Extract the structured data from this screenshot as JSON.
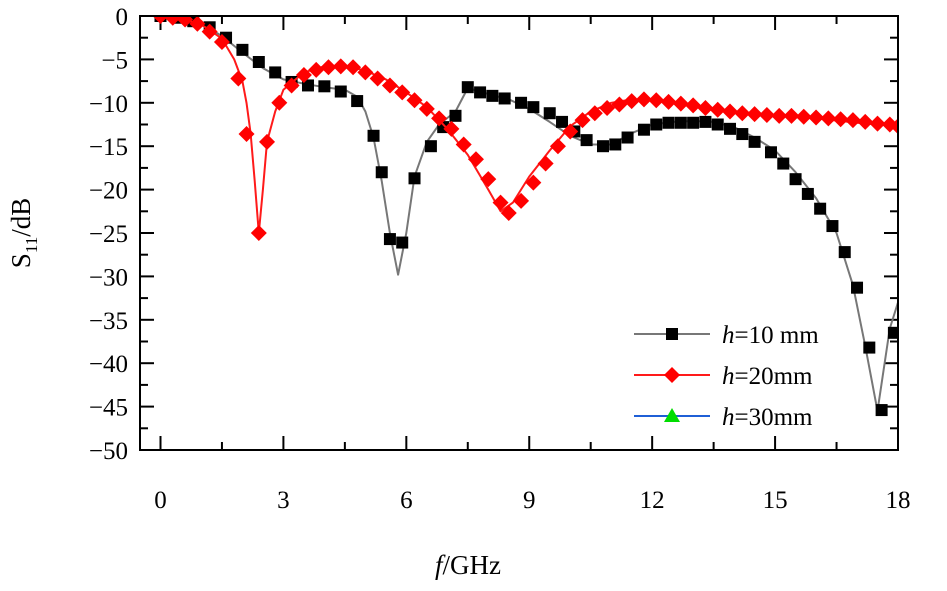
{
  "chart_data": {
    "type": "line",
    "title": "",
    "xlabel": {
      "italic": "f",
      "rest": "/GHz"
    },
    "ylabel": {
      "main": "S",
      "sub": "11",
      "rest": "/dB"
    },
    "xlim": [
      -0.5,
      18
    ],
    "ylim": [
      -50,
      0
    ],
    "xticks": [
      0,
      3,
      6,
      9,
      12,
      15,
      18
    ],
    "yticks": [
      0,
      -5,
      -10,
      -15,
      -20,
      -25,
      -30,
      -35,
      -40,
      -45,
      -50
    ],
    "xtick_labels": [
      "0",
      "3",
      "6",
      "9",
      "12",
      "15",
      "18"
    ],
    "ytick_labels": [
      "0",
      "−5",
      "−10",
      "−15",
      "−20",
      "−25",
      "−30",
      "−35",
      "−40",
      "−45",
      "−50"
    ],
    "grid": false,
    "legend_position": "bottom-right",
    "series": [
      {
        "name": "h=10 mm",
        "label_italic": "h",
        "label_rest": "=10 mm",
        "color": "#777777",
        "marker": "square",
        "marker_color": "#000000",
        "line": [
          [
            0,
            0
          ],
          [
            0.5,
            -0.3
          ],
          [
            1.0,
            -0.9
          ],
          [
            1.5,
            -2.3
          ],
          [
            2.0,
            -4.2
          ],
          [
            2.5,
            -6.0
          ],
          [
            3.0,
            -7.3
          ],
          [
            3.5,
            -7.8
          ],
          [
            4.0,
            -8.2
          ],
          [
            4.5,
            -8.5
          ],
          [
            4.8,
            -9.3
          ],
          [
            5.0,
            -11.0
          ],
          [
            5.2,
            -14.0
          ],
          [
            5.4,
            -19.0
          ],
          [
            5.6,
            -25.0
          ],
          [
            5.8,
            -29.8
          ],
          [
            6.0,
            -25.0
          ],
          [
            6.2,
            -18.5
          ],
          [
            6.5,
            -14.5
          ],
          [
            6.8,
            -12.5
          ],
          [
            7.2,
            -11.0
          ],
          [
            7.5,
            -8.3
          ],
          [
            8.0,
            -9.0
          ],
          [
            8.5,
            -9.6
          ],
          [
            9.0,
            -10.7
          ],
          [
            9.5,
            -12.2
          ],
          [
            10.0,
            -13.8
          ],
          [
            10.5,
            -14.8
          ],
          [
            11.0,
            -14.8
          ],
          [
            11.5,
            -13.5
          ],
          [
            12.0,
            -12.5
          ],
          [
            12.5,
            -12.2
          ],
          [
            13.0,
            -12.1
          ],
          [
            13.5,
            -12.2
          ],
          [
            14.0,
            -12.8
          ],
          [
            14.5,
            -14.0
          ],
          [
            15.0,
            -15.5
          ],
          [
            15.5,
            -18.0
          ],
          [
            16.0,
            -21.0
          ],
          [
            16.5,
            -25.0
          ],
          [
            16.9,
            -31.0
          ],
          [
            17.2,
            -38.0
          ],
          [
            17.5,
            -45.5
          ],
          [
            17.8,
            -36.0
          ],
          [
            18.0,
            -33.0
          ]
        ],
        "points": [
          [
            0.0,
            0.0
          ],
          [
            0.4,
            -0.2
          ],
          [
            0.8,
            -0.6
          ],
          [
            1.2,
            -1.3
          ],
          [
            1.6,
            -2.5
          ],
          [
            2.0,
            -3.9
          ],
          [
            2.4,
            -5.3
          ],
          [
            2.8,
            -6.5
          ],
          [
            3.2,
            -7.6
          ],
          [
            3.6,
            -8.0
          ],
          [
            4.0,
            -8.1
          ],
          [
            4.4,
            -8.7
          ],
          [
            4.8,
            -9.8
          ],
          [
            5.2,
            -13.8
          ],
          [
            5.4,
            -18.0
          ],
          [
            5.6,
            -25.7
          ],
          [
            5.9,
            -26.1
          ],
          [
            6.2,
            -18.7
          ],
          [
            6.6,
            -15.0
          ],
          [
            6.9,
            -12.8
          ],
          [
            7.2,
            -11.5
          ],
          [
            7.5,
            -8.2
          ],
          [
            7.8,
            -8.8
          ],
          [
            8.1,
            -9.2
          ],
          [
            8.4,
            -9.5
          ],
          [
            8.8,
            -10.0
          ],
          [
            9.1,
            -10.5
          ],
          [
            9.5,
            -11.2
          ],
          [
            9.8,
            -12.2
          ],
          [
            10.1,
            -13.3
          ],
          [
            10.4,
            -14.3
          ],
          [
            10.8,
            -15.0
          ],
          [
            11.1,
            -14.8
          ],
          [
            11.4,
            -14.0
          ],
          [
            11.8,
            -13.1
          ],
          [
            12.1,
            -12.5
          ],
          [
            12.4,
            -12.3
          ],
          [
            12.7,
            -12.3
          ],
          [
            13.0,
            -12.3
          ],
          [
            13.3,
            -12.2
          ],
          [
            13.6,
            -12.5
          ],
          [
            13.9,
            -13.0
          ],
          [
            14.2,
            -13.6
          ],
          [
            14.5,
            -14.5
          ],
          [
            14.9,
            -15.7
          ],
          [
            15.2,
            -17.0
          ],
          [
            15.5,
            -18.8
          ],
          [
            15.8,
            -20.5
          ],
          [
            16.1,
            -22.2
          ],
          [
            16.4,
            -24.2
          ],
          [
            16.7,
            -27.2
          ],
          [
            17.0,
            -31.3
          ],
          [
            17.3,
            -38.2
          ],
          [
            17.6,
            -45.4
          ],
          [
            17.9,
            -36.5
          ]
        ]
      },
      {
        "name": "h=20mm",
        "label_italic": "h",
        "label_rest": "=20mm",
        "color": "#ff1a1a",
        "marker": "diamond",
        "marker_color": "#ff0000",
        "line": [
          [
            0,
            0
          ],
          [
            0.5,
            -0.3
          ],
          [
            1.0,
            -1.0
          ],
          [
            1.5,
            -2.6
          ],
          [
            1.8,
            -5.0
          ],
          [
            2.0,
            -7.5
          ],
          [
            2.1,
            -10.0
          ],
          [
            2.2,
            -13.5
          ],
          [
            2.3,
            -19.0
          ],
          [
            2.4,
            -25.0
          ],
          [
            2.5,
            -20.0
          ],
          [
            2.6,
            -14.5
          ],
          [
            2.8,
            -11.0
          ],
          [
            3.0,
            -8.5
          ],
          [
            3.5,
            -6.5
          ],
          [
            4.0,
            -5.8
          ],
          [
            4.5,
            -5.7
          ],
          [
            5.0,
            -6.3
          ],
          [
            5.5,
            -7.3
          ],
          [
            6.0,
            -8.8
          ],
          [
            6.5,
            -10.5
          ],
          [
            7.0,
            -13.0
          ],
          [
            7.5,
            -16.0
          ],
          [
            8.0,
            -20.0
          ],
          [
            8.3,
            -22.5
          ],
          [
            8.6,
            -21.5
          ],
          [
            9.0,
            -18.5
          ],
          [
            9.5,
            -15.5
          ],
          [
            10.0,
            -12.7
          ],
          [
            10.5,
            -11.0
          ],
          [
            11.0,
            -10.0
          ],
          [
            11.5,
            -9.6
          ],
          [
            12.0,
            -9.7
          ],
          [
            12.5,
            -10.0
          ],
          [
            13.0,
            -10.4
          ],
          [
            14.0,
            -11.1
          ],
          [
            15.0,
            -11.5
          ],
          [
            16.0,
            -11.8
          ],
          [
            17.0,
            -12.3
          ],
          [
            18.0,
            -12.7
          ]
        ],
        "points": [
          [
            0.0,
            0.0
          ],
          [
            0.3,
            -0.2
          ],
          [
            0.6,
            -0.4
          ],
          [
            0.9,
            -0.9
          ],
          [
            1.2,
            -1.8
          ],
          [
            1.5,
            -3.0
          ],
          [
            1.9,
            -7.2
          ],
          [
            2.1,
            -13.6
          ],
          [
            2.4,
            -25.0
          ],
          [
            2.6,
            -14.5
          ],
          [
            2.9,
            -10.0
          ],
          [
            3.2,
            -8.0
          ],
          [
            3.5,
            -6.8
          ],
          [
            3.8,
            -6.2
          ],
          [
            4.1,
            -5.9
          ],
          [
            4.4,
            -5.8
          ],
          [
            4.7,
            -5.9
          ],
          [
            5.0,
            -6.5
          ],
          [
            5.3,
            -7.2
          ],
          [
            5.6,
            -8.0
          ],
          [
            5.9,
            -8.8
          ],
          [
            6.2,
            -9.7
          ],
          [
            6.5,
            -10.7
          ],
          [
            6.8,
            -11.8
          ],
          [
            7.1,
            -13.0
          ],
          [
            7.4,
            -14.8
          ],
          [
            7.7,
            -16.5
          ],
          [
            8.0,
            -18.8
          ],
          [
            8.3,
            -21.5
          ],
          [
            8.5,
            -22.7
          ],
          [
            8.8,
            -21.3
          ],
          [
            9.1,
            -19.2
          ],
          [
            9.4,
            -17.0
          ],
          [
            9.7,
            -15.0
          ],
          [
            10.0,
            -13.3
          ],
          [
            10.3,
            -12.0
          ],
          [
            10.6,
            -11.2
          ],
          [
            10.9,
            -10.6
          ],
          [
            11.2,
            -10.2
          ],
          [
            11.5,
            -9.8
          ],
          [
            11.8,
            -9.6
          ],
          [
            12.1,
            -9.7
          ],
          [
            12.4,
            -9.9
          ],
          [
            12.7,
            -10.1
          ],
          [
            13.0,
            -10.3
          ],
          [
            13.3,
            -10.6
          ],
          [
            13.6,
            -10.8
          ],
          [
            13.9,
            -11.0
          ],
          [
            14.2,
            -11.2
          ],
          [
            14.5,
            -11.3
          ],
          [
            14.8,
            -11.4
          ],
          [
            15.1,
            -11.5
          ],
          [
            15.4,
            -11.5
          ],
          [
            15.7,
            -11.6
          ],
          [
            16.0,
            -11.7
          ],
          [
            16.3,
            -11.8
          ],
          [
            16.6,
            -11.9
          ],
          [
            16.9,
            -12.0
          ],
          [
            17.2,
            -12.2
          ],
          [
            17.5,
            -12.4
          ],
          [
            17.8,
            -12.5
          ],
          [
            18.0,
            -12.7
          ]
        ]
      },
      {
        "name": "h=30mm",
        "label_italic": "h",
        "label_rest": "=30mm",
        "color": "#1f5fd6",
        "marker": "triangle",
        "marker_color": "#00dd00",
        "line": [],
        "points": []
      }
    ]
  }
}
